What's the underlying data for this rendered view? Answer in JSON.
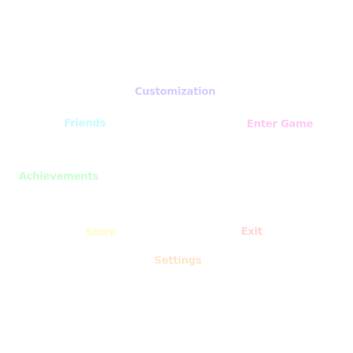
{
  "menu": {
    "items": [
      {
        "id": "customization",
        "label": "Customization",
        "color": "#d4ccff"
      },
      {
        "id": "friends",
        "label": "Friends",
        "color": "#ccfaff"
      },
      {
        "id": "enter_game",
        "label": "Enter Game",
        "color": "#ffccf6"
      },
      {
        "id": "achievements",
        "label": "Achievements",
        "color": "#ccffd1"
      },
      {
        "id": "store",
        "label": "Store",
        "color": "#fffccc"
      },
      {
        "id": "exit",
        "label": "Exit",
        "color": "#ffd6d4"
      },
      {
        "id": "settings",
        "label": "Settings",
        "color": "#ffe6cc"
      }
    ]
  }
}
